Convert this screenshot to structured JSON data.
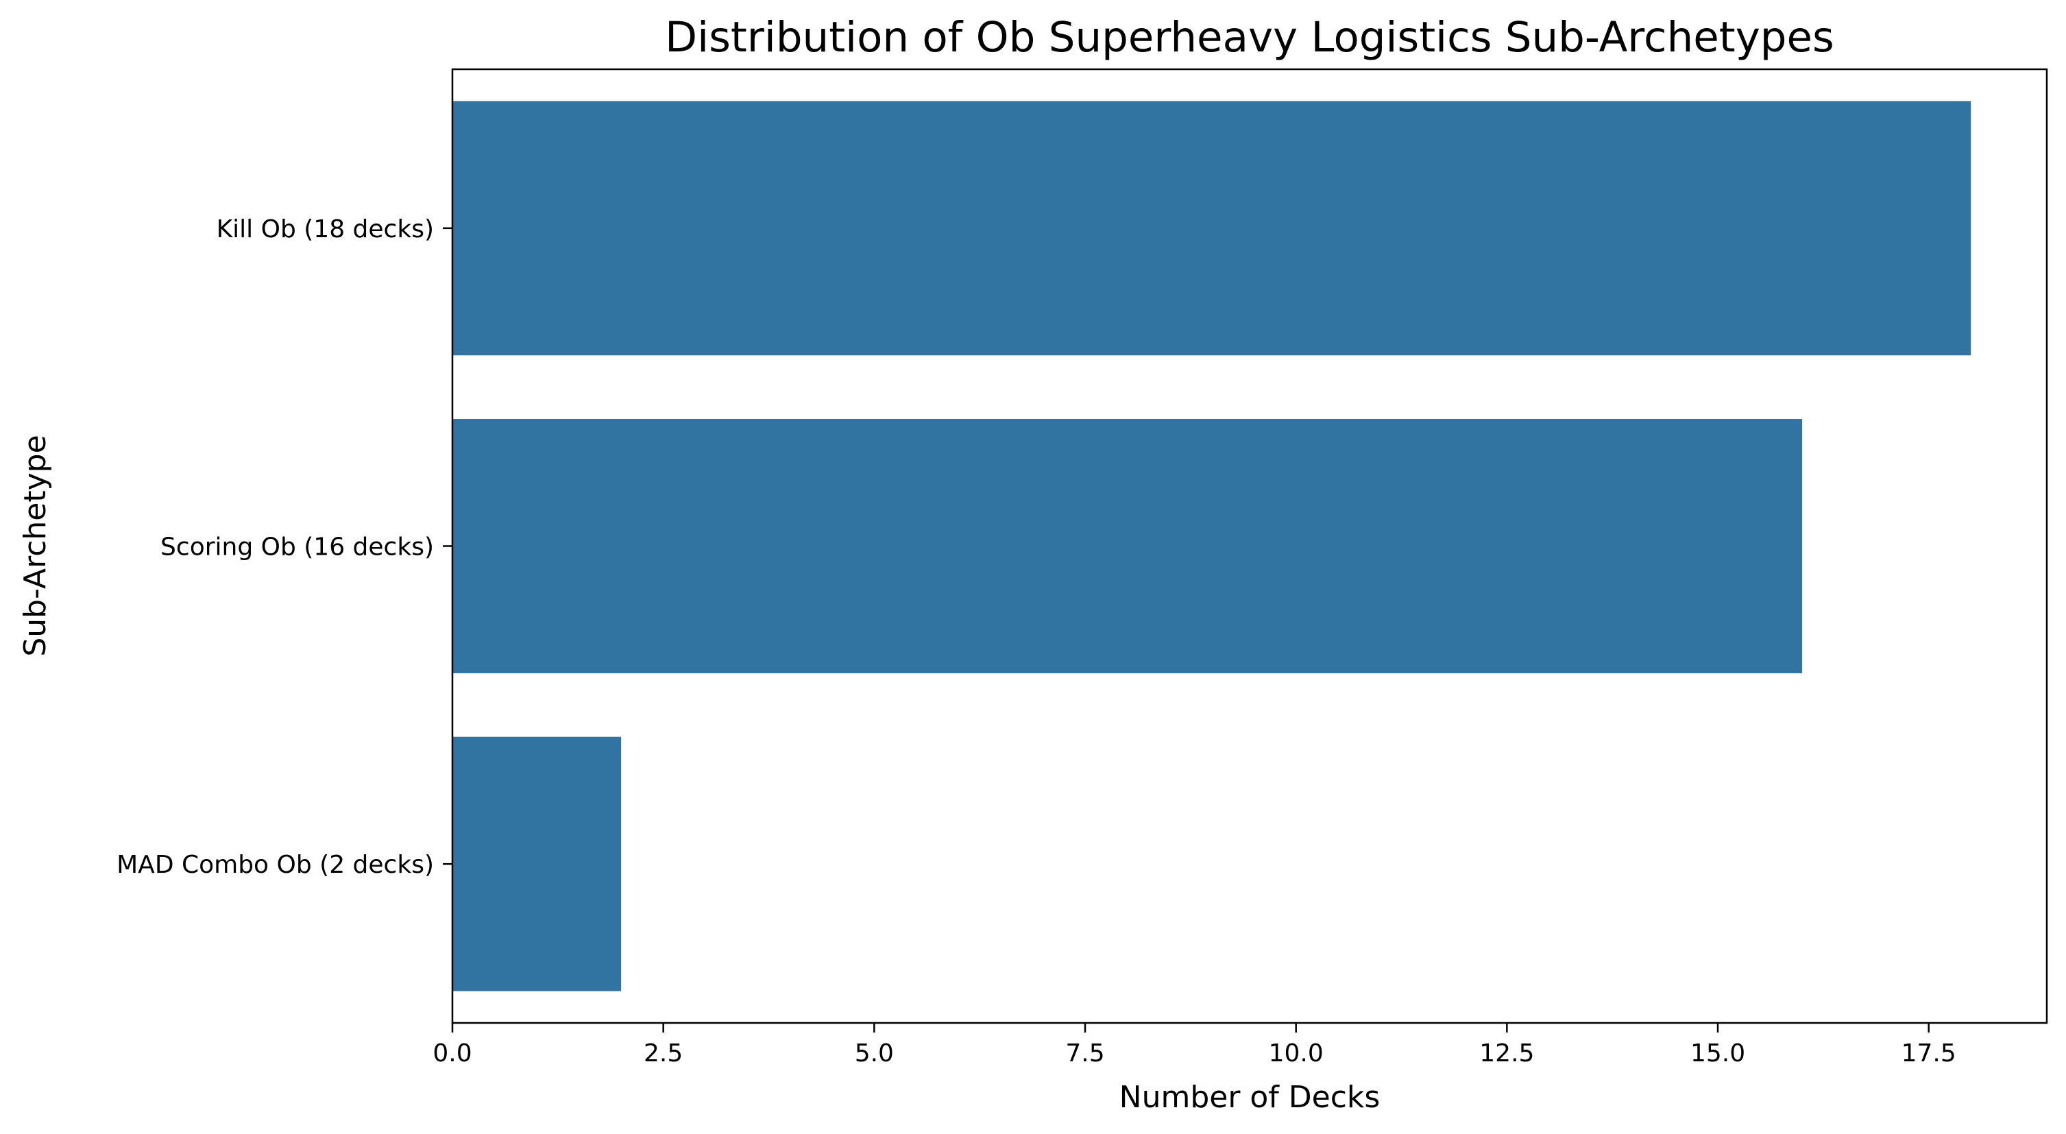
{
  "chart_data": {
    "type": "bar",
    "orientation": "horizontal",
    "title": "Distribution of Ob Superheavy Logistics Sub-Archetypes",
    "xlabel": "Number of Decks",
    "ylabel": "Sub-Archetype",
    "categories": [
      "Kill Ob (18 decks)",
      "Scoring Ob (16 decks)",
      "MAD Combo Ob (2 decks)"
    ],
    "values": [
      18,
      16,
      2
    ],
    "xlim": [
      0,
      18.9
    ],
    "xticks": [
      "0.0",
      "2.5",
      "5.0",
      "7.5",
      "10.0",
      "12.5",
      "15.0",
      "17.5"
    ],
    "xtick_values": [
      0,
      2.5,
      5,
      7.5,
      10,
      12.5,
      15,
      17.5
    ],
    "grid": false,
    "bar_color": "#3274a1"
  }
}
